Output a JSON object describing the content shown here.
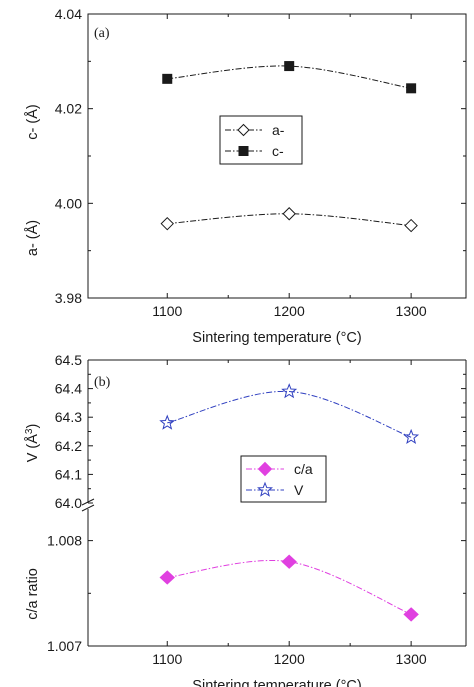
{
  "chart_data": [
    {
      "panel_label": "(a)",
      "type": "line",
      "xlabel": "Sintering temperature (°C)",
      "x": [
        1100,
        1200,
        1300
      ],
      "xlim": [
        1035,
        1345
      ],
      "xticks": [
        "1100",
        "1200",
        "1300"
      ],
      "ylim": [
        3.98,
        4.04
      ],
      "yticks": [
        "3.98",
        "4.00",
        "4.02",
        "4.04"
      ],
      "ylabels": [
        "a- (Å)",
        "c- (Å)"
      ],
      "legend": {
        "position": "center-right"
      },
      "series": [
        {
          "name": "a-",
          "values": [
            3.9957,
            3.9978,
            3.9953
          ],
          "marker": "open-diamond",
          "color": "#1a1a1a"
        },
        {
          "name": "c-",
          "values": [
            4.0263,
            4.029,
            4.0243
          ],
          "marker": "filled-square",
          "color": "#1a1a1a"
        }
      ]
    },
    {
      "panel_label": "(b)",
      "type": "line",
      "xlabel": "Sintering temperature (°C)",
      "x": [
        1100,
        1200,
        1300
      ],
      "xlim": [
        1035,
        1345
      ],
      "xticks": [
        "1100",
        "1200",
        "1300"
      ],
      "broken_y_axis": true,
      "upper": {
        "ylabel": "V (Å",
        "ylabel_sup": "3",
        "ylabel_tail": ")",
        "ylim": [
          64.0,
          64.5
        ],
        "yticks": [
          "64.0",
          "64.1",
          "64.2",
          "64.3",
          "64.4",
          "64.5"
        ]
      },
      "lower": {
        "ylabel": "c/a ratio",
        "ylim": [
          1.007,
          1.0083
        ],
        "yticks": [
          "1.007",
          "1.008"
        ]
      },
      "legend": {
        "position": "center-right"
      },
      "series": [
        {
          "name": "c/a",
          "axis": "lower",
          "values": [
            1.00765,
            1.0078,
            1.0073
          ],
          "marker": "filled-diamond",
          "color": "#e040e0"
        },
        {
          "name": "V",
          "axis": "upper",
          "values": [
            64.28,
            64.39,
            64.23
          ],
          "marker": "open-star",
          "color": "#3040c0"
        }
      ]
    }
  ]
}
